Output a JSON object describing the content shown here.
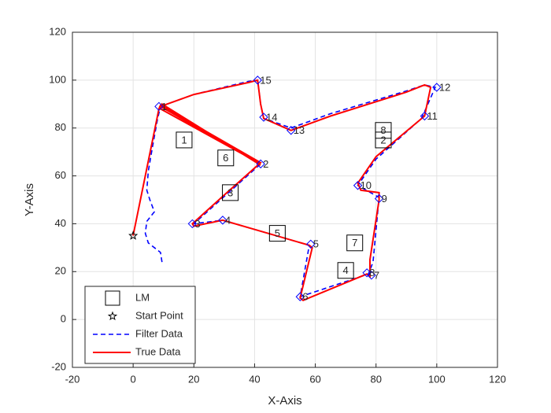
{
  "chart_data": {
    "type": "line",
    "xlabel": "X-Axis",
    "ylabel": "Y-Axis",
    "xlim": [
      -20,
      120
    ],
    "ylim": [
      -20,
      120
    ],
    "xticks": [
      -20,
      0,
      20,
      40,
      60,
      80,
      100,
      120
    ],
    "yticks": [
      -20,
      0,
      20,
      40,
      60,
      80,
      100,
      120
    ],
    "grid": true,
    "legend": "southwest",
    "series": [
      {
        "name": "LM",
        "marker": "square",
        "color": "#000000",
        "x": [
          16.8,
          82.4,
          32,
          70,
          47.5,
          30.5,
          73,
          82.4
        ],
        "y": [
          75,
          75,
          53,
          20.5,
          36,
          67.5,
          32,
          79
        ],
        "point_labels": [
          "1",
          "2",
          "3",
          "4",
          "5",
          "6",
          "7",
          "8"
        ]
      },
      {
        "name": "Start Point",
        "marker": "star",
        "color": "#000000",
        "x": [
          0
        ],
        "y": [
          35
        ]
      },
      {
        "name": "Filter Data",
        "style": "dashed",
        "color": "#0000ff",
        "x": [
          9.5,
          9,
          5,
          4,
          4.5,
          7,
          5.5,
          4.5,
          5,
          6.5,
          8,
          9,
          42,
          20,
          29.5,
          58,
          55,
          77.5,
          79,
          81,
          74,
          80,
          95,
          99.5,
          96,
          90,
          65,
          52,
          43,
          42,
          41,
          38,
          20,
          9
        ],
        "y": [
          24,
          28,
          32,
          36,
          41,
          45,
          50,
          54,
          62,
          73,
          83.5,
          89,
          65,
          40,
          41.5,
          31,
          9.5,
          19,
          24,
          51,
          56,
          67,
          84,
          97,
          98,
          95.5,
          86,
          80,
          84,
          90,
          100,
          99.5,
          94,
          89
        ]
      },
      {
        "name": "True Data",
        "style": "solid",
        "color": "#ff0000",
        "x": [
          0,
          8.5,
          9,
          42,
          30,
          19.5,
          20,
          29.5,
          58,
          59,
          55,
          56,
          77,
          78,
          78,
          81,
          81,
          75,
          74,
          80,
          96,
          98,
          96,
          90,
          65,
          52,
          43,
          42,
          41,
          38,
          20,
          9,
          42,
          9,
          9.5,
          42
        ],
        "y": [
          35,
          88,
          89.5,
          65.5,
          52,
          40,
          39,
          41.5,
          31,
          30,
          9,
          8,
          19,
          18,
          25,
          50,
          53,
          54,
          57,
          68,
          85,
          97,
          98,
          95,
          85,
          79,
          84,
          90,
          100,
          99,
          94,
          89,
          65,
          88,
          90,
          64.5
        ]
      }
    ],
    "waypoints": {
      "color": "#0000ff",
      "x": [
        8.5,
        42,
        19.5,
        29.5,
        58.5,
        55,
        78.5,
        77,
        81,
        74,
        96,
        100,
        52,
        43,
        41
      ],
      "y": [
        89,
        65,
        40,
        41.5,
        31.5,
        9.5,
        18.5,
        19.5,
        50.5,
        56,
        85,
        97,
        79,
        84.5,
        100
      ],
      "labels": [
        "1",
        "2",
        "3",
        "4",
        "5",
        "6",
        "7",
        "8",
        "9",
        "10",
        "11",
        "12",
        "13",
        "14",
        "15"
      ]
    }
  }
}
